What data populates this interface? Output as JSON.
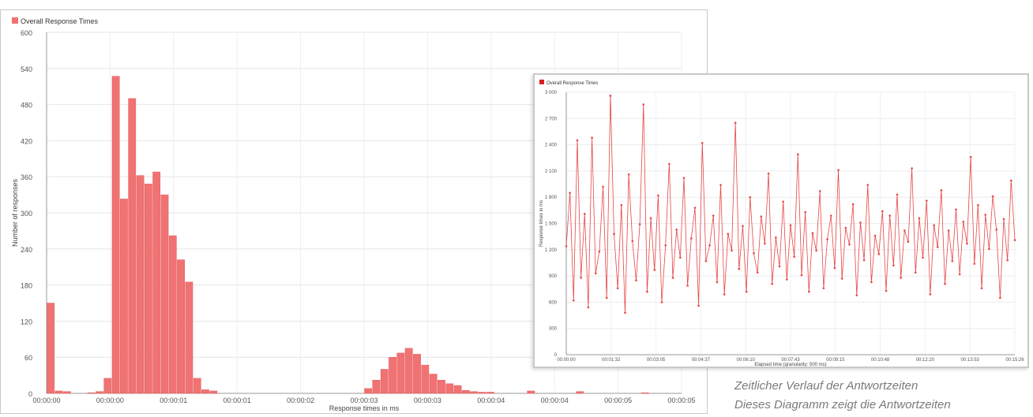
{
  "chart_data": [
    {
      "type": "bar",
      "title": "Overall Response Times",
      "legend": "top-left",
      "xlabel": "Response times in ms",
      "ylabel": "Number of responses",
      "ylim": [
        0,
        600
      ],
      "yticks": [
        "0",
        "60",
        "120",
        "180",
        "240",
        "300",
        "360",
        "420",
        "480",
        "540",
        "600"
      ],
      "xticks": [
        "00:00:00",
        "00:00:00",
        "00:00:01",
        "00:00:01",
        "00:00:02",
        "00:00:03",
        "00:00:03",
        "00:00:04",
        "00:00:04",
        "00:00:05",
        "00:00:05"
      ],
      "values": [
        150,
        4,
        3,
        0,
        0,
        1,
        3,
        25,
        527,
        323,
        490,
        362,
        348,
        368,
        330,
        262,
        222,
        185,
        25,
        6,
        4,
        0,
        0,
        0,
        0,
        0,
        0,
        0,
        0,
        0,
        0,
        0,
        0,
        0,
        0,
        0,
        0,
        0,
        0,
        8,
        22,
        40,
        60,
        67,
        75,
        65,
        47,
        32,
        22,
        16,
        13,
        5,
        3,
        2,
        2,
        0,
        0,
        0,
        0,
        4,
        0,
        0,
        0,
        0,
        0,
        3,
        0,
        0,
        0,
        0,
        0,
        0,
        0,
        1,
        0,
        0,
        0,
        0
      ],
      "grid": true,
      "color": "#f07272"
    },
    {
      "type": "line",
      "title": "Overall Response Times",
      "legend": "top-left",
      "xlabel": "Elapsed time (granularity: 500 ms)",
      "ylabel": "Response times in ms",
      "ylim": [
        0,
        3000
      ],
      "yticks": [
        "0",
        "300",
        "600",
        "900",
        "1 200",
        "1 500",
        "1 800",
        "2 100",
        "2 400",
        "2 700",
        "3 000"
      ],
      "xticks": [
        "00:00:00",
        "00:01:32",
        "00:03:05",
        "00:04:37",
        "00:06:10",
        "00:07:43",
        "00:09:15",
        "00:10:48",
        "00:12:20",
        "00:13:53",
        "00:15:26"
      ],
      "values": [
        1240,
        1850,
        620,
        2450,
        880,
        1610,
        540,
        2480,
        930,
        1180,
        1920,
        650,
        2960,
        1380,
        760,
        1710,
        480,
        2060,
        1300,
        850,
        1490,
        2860,
        720,
        1560,
        970,
        1820,
        600,
        1250,
        2180,
        880,
        1430,
        1110,
        2020,
        790,
        1330,
        1680,
        560,
        2420,
        1070,
        1250,
        1590,
        830,
        1940,
        690,
        1380,
        1190,
        2650,
        980,
        1470,
        720,
        1800,
        1160,
        940,
        1580,
        1270,
        2070,
        810,
        1340,
        1010,
        1750,
        860,
        1480,
        1120,
        2290,
        910,
        1630,
        720,
        1390,
        1190,
        1870,
        760,
        1320,
        1590,
        990,
        2110,
        870,
        1450,
        1260,
        1720,
        680,
        1510,
        1080,
        1940,
        830,
        1360,
        1150,
        1640,
        730,
        1590,
        1020,
        1830,
        880,
        1420,
        1290,
        2130,
        940,
        1560,
        1110,
        1760,
        690,
        1480,
        1230,
        1880,
        810,
        1420,
        1070,
        1660,
        920,
        1520,
        1270,
        2260,
        1040,
        1710,
        760,
        1600,
        1210,
        1810,
        1430,
        650,
        1550,
        1080,
        1990,
        1310
      ]
    }
  ],
  "caption": {
    "line1": "Zeitlicher Verlauf der Antwortzeiten",
    "line2": "Dieses Diagramm zeigt die Antwortzeiten"
  }
}
